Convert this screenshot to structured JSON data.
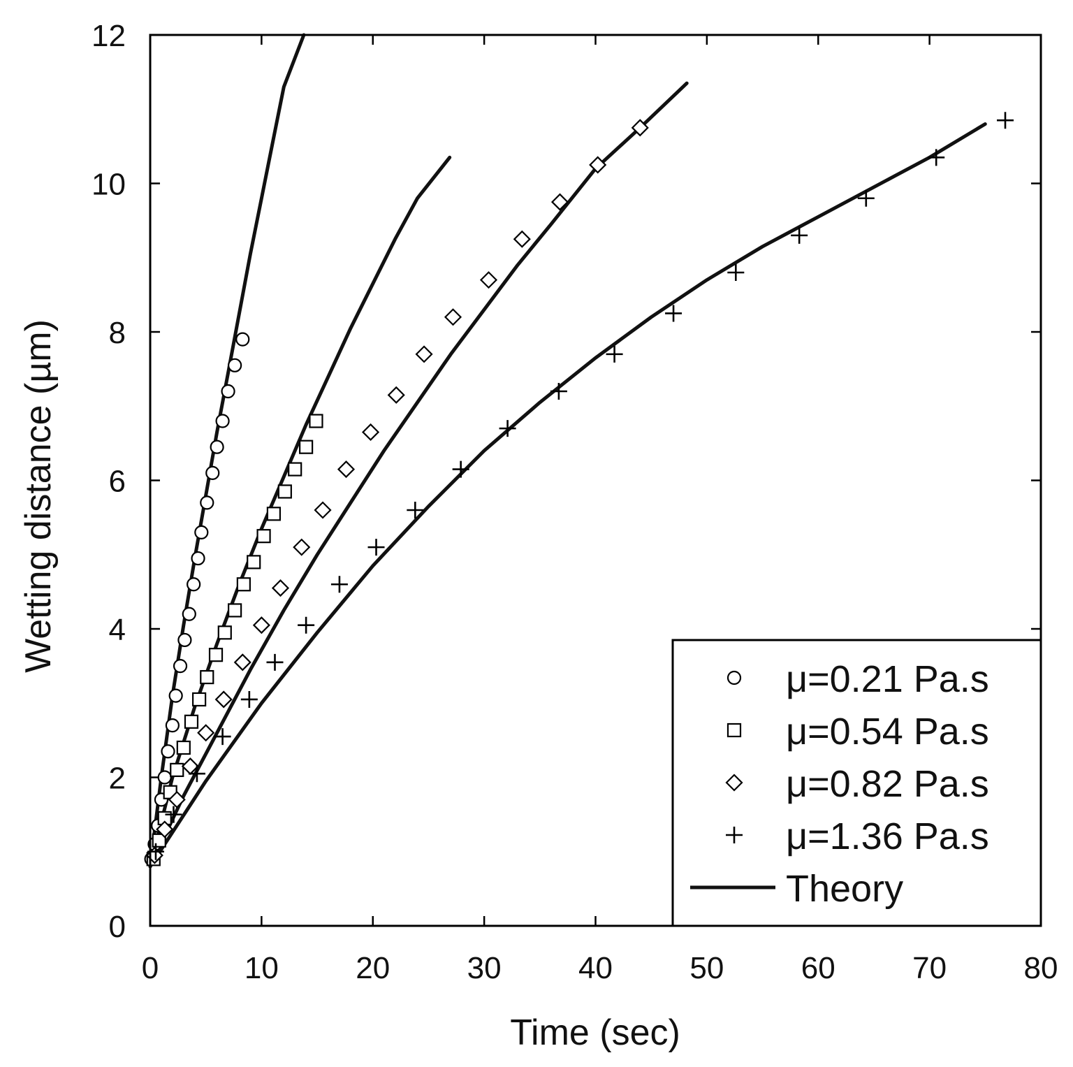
{
  "chart_data": {
    "type": "scatter",
    "title": "",
    "xlabel": "Time (sec)",
    "ylabel": "Wetting distance (µm)",
    "xlim": [
      0,
      80
    ],
    "ylim": [
      0,
      12
    ],
    "xticks": [
      0,
      10,
      20,
      30,
      40,
      50,
      60,
      70,
      80
    ],
    "yticks": [
      0,
      2,
      4,
      6,
      8,
      10,
      12
    ],
    "xtick_labels": [
      "0",
      "10",
      "20",
      "30",
      "40",
      "50",
      "60",
      "70",
      "80"
    ],
    "ytick_labels": [
      "0",
      "2",
      "4",
      "6",
      "8",
      "10",
      "12"
    ],
    "legend_position": "bottom-right",
    "series": [
      {
        "name": "μ=0.21 Pa.s",
        "marker": "circle",
        "points": [
          [
            0.1,
            0.9
          ],
          [
            0.4,
            1.1
          ],
          [
            0.7,
            1.35
          ],
          [
            1.0,
            1.7
          ],
          [
            1.3,
            2.0
          ],
          [
            1.6,
            2.35
          ],
          [
            2.0,
            2.7
          ],
          [
            2.3,
            3.1
          ],
          [
            2.7,
            3.5
          ],
          [
            3.1,
            3.85
          ],
          [
            3.5,
            4.2
          ],
          [
            3.9,
            4.6
          ],
          [
            4.3,
            4.95
          ],
          [
            4.6,
            5.3
          ],
          [
            5.1,
            5.7
          ],
          [
            5.6,
            6.1
          ],
          [
            6.0,
            6.45
          ],
          [
            6.5,
            6.8
          ],
          [
            7.0,
            7.2
          ],
          [
            7.6,
            7.55
          ],
          [
            8.3,
            7.9
          ]
        ]
      },
      {
        "name": "μ=0.54 Pa.s",
        "marker": "square",
        "points": [
          [
            0.3,
            0.9
          ],
          [
            0.8,
            1.15
          ],
          [
            1.3,
            1.45
          ],
          [
            1.8,
            1.8
          ],
          [
            2.4,
            2.1
          ],
          [
            3.0,
            2.4
          ],
          [
            3.7,
            2.75
          ],
          [
            4.4,
            3.05
          ],
          [
            5.1,
            3.35
          ],
          [
            5.9,
            3.65
          ],
          [
            6.7,
            3.95
          ],
          [
            7.6,
            4.25
          ],
          [
            8.4,
            4.6
          ],
          [
            9.3,
            4.9
          ],
          [
            10.2,
            5.25
          ],
          [
            11.1,
            5.55
          ],
          [
            12.1,
            5.85
          ],
          [
            13.0,
            6.15
          ],
          [
            14.0,
            6.45
          ],
          [
            14.9,
            6.8
          ]
        ]
      },
      {
        "name": "μ=0.82 Pa.s",
        "marker": "diamond",
        "points": [
          [
            0.4,
            0.95
          ],
          [
            1.3,
            1.3
          ],
          [
            2.4,
            1.7
          ],
          [
            3.6,
            2.15
          ],
          [
            5.0,
            2.6
          ],
          [
            6.6,
            3.05
          ],
          [
            8.3,
            3.55
          ],
          [
            10.0,
            4.05
          ],
          [
            11.7,
            4.55
          ],
          [
            13.6,
            5.1
          ],
          [
            15.5,
            5.6
          ],
          [
            17.6,
            6.15
          ],
          [
            19.8,
            6.65
          ],
          [
            22.1,
            7.15
          ],
          [
            24.6,
            7.7
          ],
          [
            27.2,
            8.2
          ],
          [
            30.4,
            8.7
          ],
          [
            33.4,
            9.25
          ],
          [
            36.8,
            9.75
          ],
          [
            40.2,
            10.25
          ],
          [
            44.0,
            10.75
          ]
        ]
      },
      {
        "name": "μ=1.36 Pa.s",
        "marker": "plus",
        "points": [
          [
            0.5,
            1.0
          ],
          [
            2.1,
            1.5
          ],
          [
            4.2,
            2.05
          ],
          [
            6.5,
            2.55
          ],
          [
            8.9,
            3.05
          ],
          [
            11.2,
            3.55
          ],
          [
            14.0,
            4.05
          ],
          [
            17.0,
            4.6
          ],
          [
            20.3,
            5.1
          ],
          [
            23.8,
            5.6
          ],
          [
            27.9,
            6.15
          ],
          [
            32.1,
            6.7
          ],
          [
            36.7,
            7.2
          ],
          [
            41.7,
            7.7
          ],
          [
            47.0,
            8.25
          ],
          [
            52.6,
            8.8
          ],
          [
            58.3,
            9.3
          ],
          [
            64.3,
            9.8
          ],
          [
            70.6,
            10.35
          ],
          [
            76.8,
            10.85
          ]
        ]
      },
      {
        "name": "Theory",
        "marker": "line",
        "curves": [
          [
            [
              0,
              0.8
            ],
            [
              1,
              2.0
            ],
            [
              2,
              3.1
            ],
            [
              3,
              4.05
            ],
            [
              4,
              4.95
            ],
            [
              5,
              5.8
            ],
            [
              6,
              6.65
            ],
            [
              7,
              7.45
            ],
            [
              8,
              8.25
            ],
            [
              9,
              9.05
            ],
            [
              10,
              9.8
            ],
            [
              11,
              10.55
            ],
            [
              12,
              11.3
            ],
            [
              13.8,
              12.0
            ]
          ],
          [
            [
              0,
              0.8
            ],
            [
              2,
              2.0
            ],
            [
              4,
              2.95
            ],
            [
              6,
              3.8
            ],
            [
              8,
              4.6
            ],
            [
              10,
              5.35
            ],
            [
              12,
              6.05
            ],
            [
              14,
              6.75
            ],
            [
              16,
              7.4
            ],
            [
              18,
              8.05
            ],
            [
              20,
              8.65
            ],
            [
              22,
              9.25
            ],
            [
              24,
              9.8
            ],
            [
              26.9,
              10.35
            ]
          ],
          [
            [
              0,
              0.8
            ],
            [
              3,
              1.75
            ],
            [
              6,
              2.6
            ],
            [
              9,
              3.45
            ],
            [
              12,
              4.25
            ],
            [
              15,
              5.0
            ],
            [
              18,
              5.7
            ],
            [
              21,
              6.4
            ],
            [
              24,
              7.05
            ],
            [
              27,
              7.7
            ],
            [
              30,
              8.3
            ],
            [
              33,
              8.9
            ],
            [
              36,
              9.45
            ],
            [
              40,
              10.2
            ],
            [
              44,
              10.75
            ],
            [
              48.2,
              11.35
            ]
          ],
          [
            [
              0,
              0.8
            ],
            [
              5,
              1.95
            ],
            [
              10,
              3.0
            ],
            [
              15,
              3.95
            ],
            [
              20,
              4.85
            ],
            [
              25,
              5.65
            ],
            [
              30,
              6.4
            ],
            [
              35,
              7.05
            ],
            [
              40,
              7.65
            ],
            [
              45,
              8.2
            ],
            [
              50,
              8.7
            ],
            [
              55,
              9.15
            ],
            [
              60,
              9.55
            ],
            [
              65,
              9.95
            ],
            [
              70,
              10.35
            ],
            [
              75,
              10.8
            ]
          ]
        ]
      }
    ]
  }
}
